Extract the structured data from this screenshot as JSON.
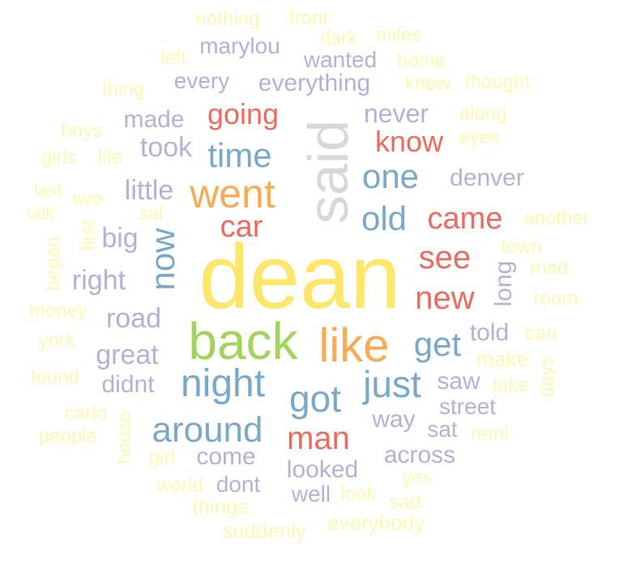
{
  "palette": {
    "yellow": "#fde76b",
    "light_yellow": "#fcf8b0",
    "grey": "#d7d7d7",
    "lavender": "#b3b1d8",
    "blue": "#78a9ca",
    "red": "#ee6a5d",
    "orange": "#f6ab55",
    "green": "#a2d45c"
  },
  "words": [
    {
      "text": "dean",
      "color": "yellow"
    },
    {
      "text": "said",
      "color": "grey"
    },
    {
      "text": "back",
      "color": "green"
    },
    {
      "text": "like",
      "color": "orange"
    },
    {
      "text": "went",
      "color": "orange"
    },
    {
      "text": "night",
      "color": "blue"
    },
    {
      "text": "got",
      "color": "blue"
    },
    {
      "text": "just",
      "color": "blue"
    },
    {
      "text": "around",
      "color": "blue"
    },
    {
      "text": "time",
      "color": "blue"
    },
    {
      "text": "one",
      "color": "blue"
    },
    {
      "text": "old",
      "color": "blue"
    },
    {
      "text": "now",
      "color": "blue"
    },
    {
      "text": "get",
      "color": "blue"
    },
    {
      "text": "man",
      "color": "red"
    },
    {
      "text": "came",
      "color": "red"
    },
    {
      "text": "car",
      "color": "red"
    },
    {
      "text": "see",
      "color": "red"
    },
    {
      "text": "new",
      "color": "red"
    },
    {
      "text": "going",
      "color": "red"
    },
    {
      "text": "know",
      "color": "red"
    },
    {
      "text": "road",
      "color": "lavender"
    },
    {
      "text": "great",
      "color": "lavender"
    },
    {
      "text": "right",
      "color": "lavender"
    },
    {
      "text": "big",
      "color": "lavender"
    },
    {
      "text": "little",
      "color": "lavender"
    },
    {
      "text": "took",
      "color": "lavender"
    },
    {
      "text": "made",
      "color": "lavender"
    },
    {
      "text": "never",
      "color": "lavender"
    },
    {
      "text": "denver",
      "color": "lavender"
    },
    {
      "text": "everything",
      "color": "lavender"
    },
    {
      "text": "every",
      "color": "lavender"
    },
    {
      "text": "wanted",
      "color": "lavender"
    },
    {
      "text": "marylou",
      "color": "lavender"
    },
    {
      "text": "didnt",
      "color": "lavender"
    },
    {
      "text": "come",
      "color": "lavender"
    },
    {
      "text": "looked",
      "color": "lavender"
    },
    {
      "text": "dont",
      "color": "lavender"
    },
    {
      "text": "well",
      "color": "lavender"
    },
    {
      "text": "across",
      "color": "lavender"
    },
    {
      "text": "way",
      "color": "lavender"
    },
    {
      "text": "street",
      "color": "lavender"
    },
    {
      "text": "saw",
      "color": "lavender"
    },
    {
      "text": "told",
      "color": "lavender"
    },
    {
      "text": "sat",
      "color": "lavender"
    },
    {
      "text": "long",
      "color": "lavender"
    },
    {
      "text": "nothing",
      "color": "light_yellow"
    },
    {
      "text": "front",
      "color": "light_yellow"
    },
    {
      "text": "dark",
      "color": "light_yellow"
    },
    {
      "text": "miles",
      "color": "light_yellow"
    },
    {
      "text": "left",
      "color": "light_yellow"
    },
    {
      "text": "home",
      "color": "light_yellow"
    },
    {
      "text": "thing",
      "color": "light_yellow"
    },
    {
      "text": "knew",
      "color": "light_yellow"
    },
    {
      "text": "thought",
      "color": "light_yellow"
    },
    {
      "text": "along",
      "color": "light_yellow"
    },
    {
      "text": "boys",
      "color": "light_yellow"
    },
    {
      "text": "eyes",
      "color": "light_yellow"
    },
    {
      "text": "girls",
      "color": "light_yellow"
    },
    {
      "text": "life",
      "color": "light_yellow"
    },
    {
      "text": "last",
      "color": "light_yellow"
    },
    {
      "text": "two",
      "color": "light_yellow"
    },
    {
      "text": "talk",
      "color": "light_yellow"
    },
    {
      "text": "sal",
      "color": "light_yellow"
    },
    {
      "text": "first",
      "color": "light_yellow"
    },
    {
      "text": "began",
      "color": "light_yellow"
    },
    {
      "text": "another",
      "color": "light_yellow"
    },
    {
      "text": "town",
      "color": "light_yellow"
    },
    {
      "text": "mad",
      "color": "light_yellow"
    },
    {
      "text": "room",
      "color": "light_yellow"
    },
    {
      "text": "money",
      "color": "light_yellow"
    },
    {
      "text": "york",
      "color": "light_yellow"
    },
    {
      "text": "can",
      "color": "light_yellow"
    },
    {
      "text": "make",
      "color": "light_yellow"
    },
    {
      "text": "days",
      "color": "light_yellow"
    },
    {
      "text": "found",
      "color": "light_yellow"
    },
    {
      "text": "take",
      "color": "light_yellow"
    },
    {
      "text": "carlo",
      "color": "light_yellow"
    },
    {
      "text": "house",
      "color": "light_yellow"
    },
    {
      "text": "people",
      "color": "light_yellow"
    },
    {
      "text": "remi",
      "color": "light_yellow"
    },
    {
      "text": "girl",
      "color": "light_yellow"
    },
    {
      "text": "yes",
      "color": "light_yellow"
    },
    {
      "text": "world",
      "color": "light_yellow"
    },
    {
      "text": "look",
      "color": "light_yellow"
    },
    {
      "text": "sad",
      "color": "light_yellow"
    },
    {
      "text": "things",
      "color": "light_yellow"
    },
    {
      "text": "everybody",
      "color": "light_yellow"
    },
    {
      "text": "suddenly",
      "color": "light_yellow"
    }
  ]
}
